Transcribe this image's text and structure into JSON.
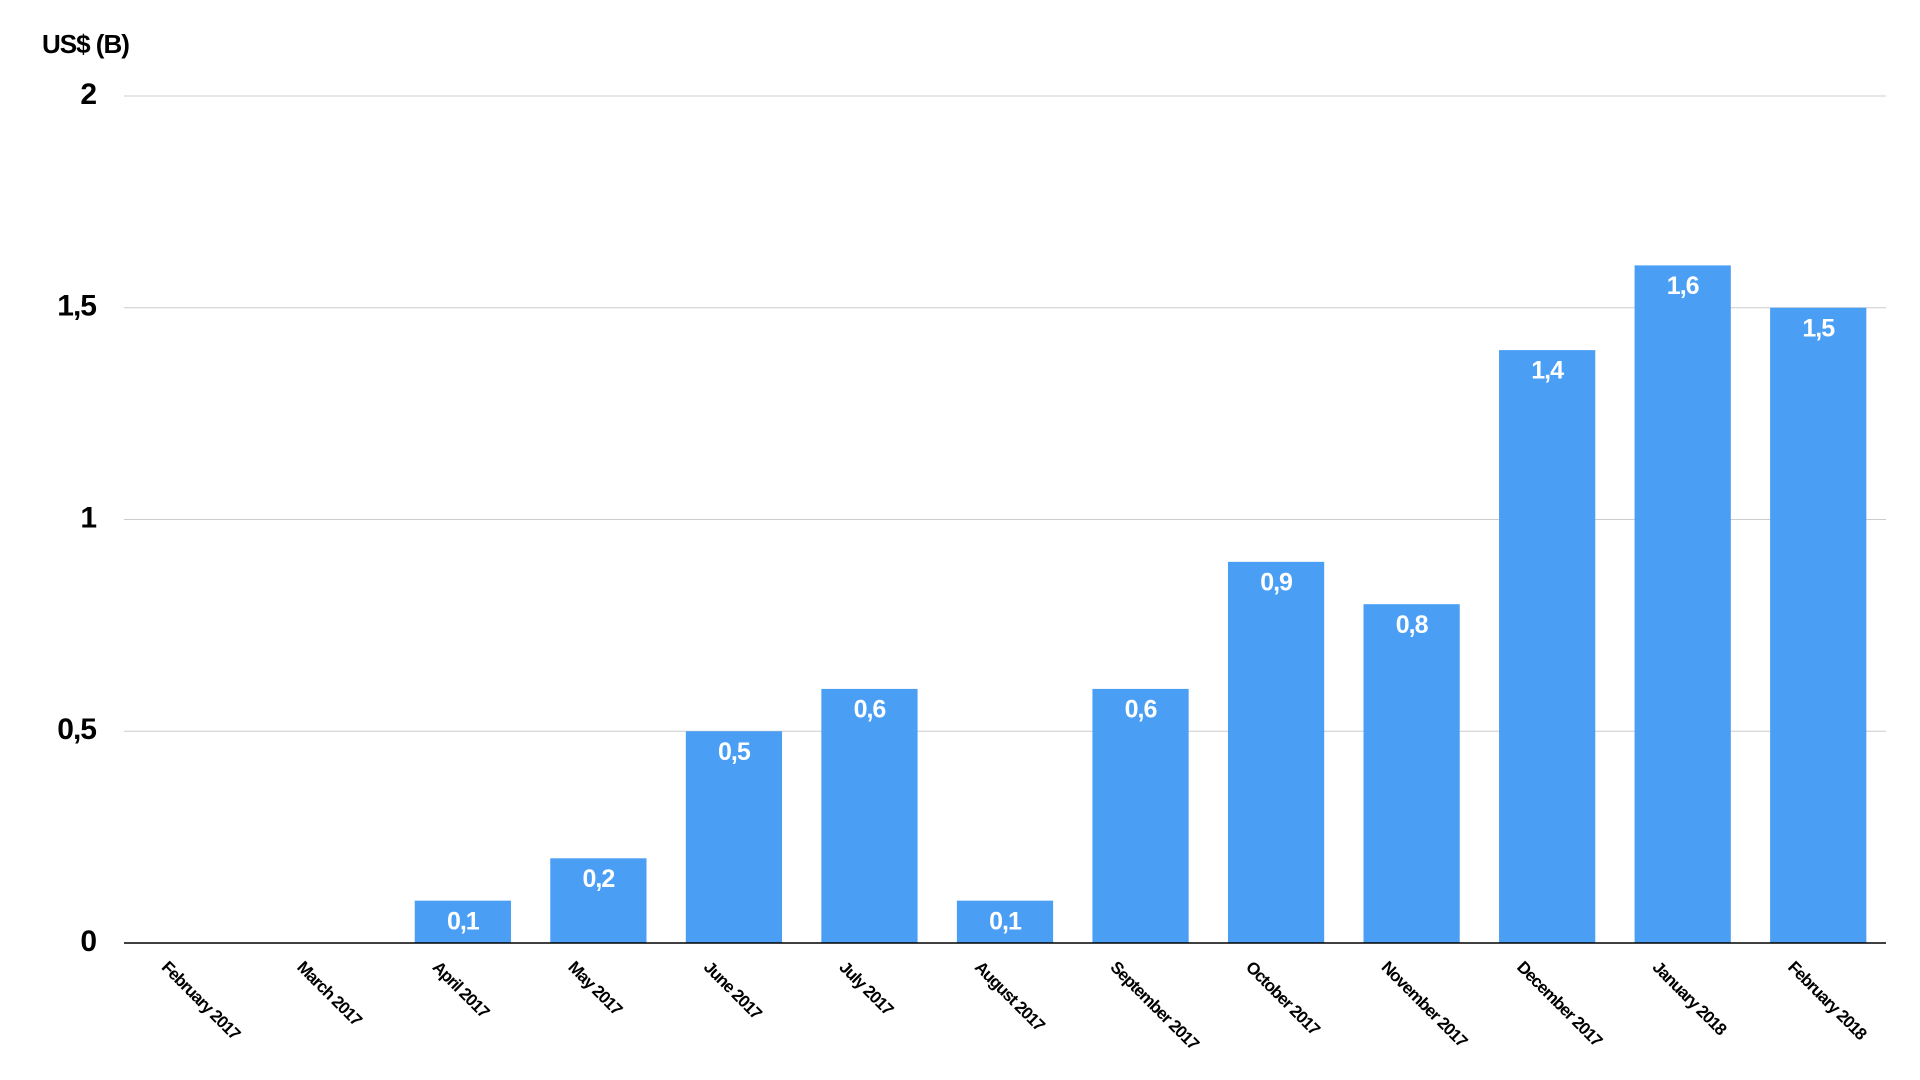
{
  "chart_data": {
    "type": "bar",
    "y_axis_label": "US$ (B)",
    "categories": [
      "February 2017",
      "March 2017",
      "April 2017",
      "May 2017",
      "June 2017",
      "July 2017",
      "August 2017",
      "September 2017",
      "October 2017",
      "November 2017",
      "December 2017",
      "January 2018",
      "February 2018"
    ],
    "values": [
      0,
      0,
      0.1,
      0.2,
      0.5,
      0.6,
      0.1,
      0.6,
      0.9,
      0.8,
      1.4,
      1.6,
      1.5
    ],
    "value_labels": [
      null,
      null,
      "0,1",
      "0,2",
      "0,5",
      "0,6",
      "0,1",
      "0,6",
      "0,9",
      "0,8",
      "1,4",
      "1,6",
      "1,5"
    ],
    "color": "#4a9ff5",
    "ylim": [
      0,
      2
    ],
    "yticks": [
      0,
      {
        "value": 0.5,
        "label": "0,5"
      },
      1,
      {
        "value": 1.5,
        "label": "1,5"
      },
      2
    ],
    "grid": true
  }
}
